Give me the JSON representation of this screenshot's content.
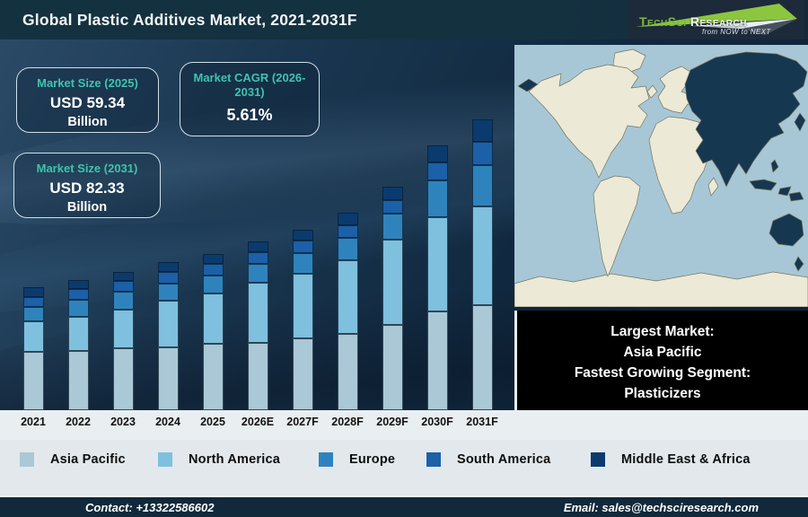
{
  "header": {
    "title": "Global Plastic Additives Market, 2021-2031F",
    "logo": {
      "brand_primary": "TechSci",
      "brand_secondary": "Research",
      "tagline": "from NOW to NEXT"
    }
  },
  "stats": [
    {
      "label": "Market Size (2025)",
      "value": "USD 59.34",
      "unit": "Billion"
    },
    {
      "label": "Market CAGR (2026-2031)",
      "value": "5.61%",
      "unit": ""
    },
    {
      "label": "Market Size (2031)",
      "value": "USD 82.33",
      "unit": "Billion"
    }
  ],
  "chart_data": {
    "type": "bar",
    "stacked": true,
    "title": "Global Plastic Additives Market, 2021-2031F",
    "categories": [
      "2021",
      "2022",
      "2023",
      "2024",
      "2025",
      "2026E",
      "2027F",
      "2028F",
      "2029F",
      "2030F",
      "2031F"
    ],
    "series": [
      {
        "name": "Asia Pacific",
        "color": "#abc8d6",
        "values": [
          65,
          66,
          69,
          70,
          74,
          75,
          80,
          85,
          95,
          110,
          117
        ]
      },
      {
        "name": "North America",
        "color": "#7fc0de",
        "values": [
          34,
          38,
          43,
          52,
          56,
          67,
          72,
          82,
          95,
          105,
          110
        ]
      },
      {
        "name": "Europe",
        "color": "#2f83bc",
        "values": [
          16,
          19,
          20,
          19,
          20,
          21,
          23,
          25,
          29,
          41,
          46
        ]
      },
      {
        "name": "South America",
        "color": "#1b60a8",
        "values": [
          11,
          12,
          12,
          13,
          13,
          13,
          14,
          14,
          15,
          20,
          26
        ]
      },
      {
        "name": "Middle East & Africa",
        "color": "#0b3a6e",
        "values": [
          11,
          10,
          10,
          11,
          11,
          12,
          12,
          14,
          15,
          19,
          25
        ]
      }
    ],
    "values_unit": "relative stacked bar height in px (no y-axis shown in source image)",
    "known_points": {
      "market_size_2025_usd_billion": 59.34,
      "market_size_2031_usd_billion": 82.33,
      "cagr_2026_2031_percent": 5.61
    },
    "xlabel": "",
    "ylabel": "",
    "grid": false,
    "legend_position": "bottom"
  },
  "map": {
    "highlight_region": "Asia Pacific",
    "ocean_color": "#a7c7d6",
    "land_color": "#ece9d6",
    "highlight_color": "#163750"
  },
  "map_callout": {
    "lines": [
      "Largest Market:",
      "Asia Pacific",
      "Fastest Growing Segment:",
      "Plasticizers"
    ]
  },
  "footer": {
    "contact": "Contact: +13322586602",
    "email": "Email: sales@techsciresearch.com"
  },
  "colors": {
    "teal_accent": "#3fc3ae",
    "header_bg": "#14313f",
    "main_bg": "#132c44",
    "footer_bg": "#11293a",
    "logo_green": "#7fb742"
  }
}
